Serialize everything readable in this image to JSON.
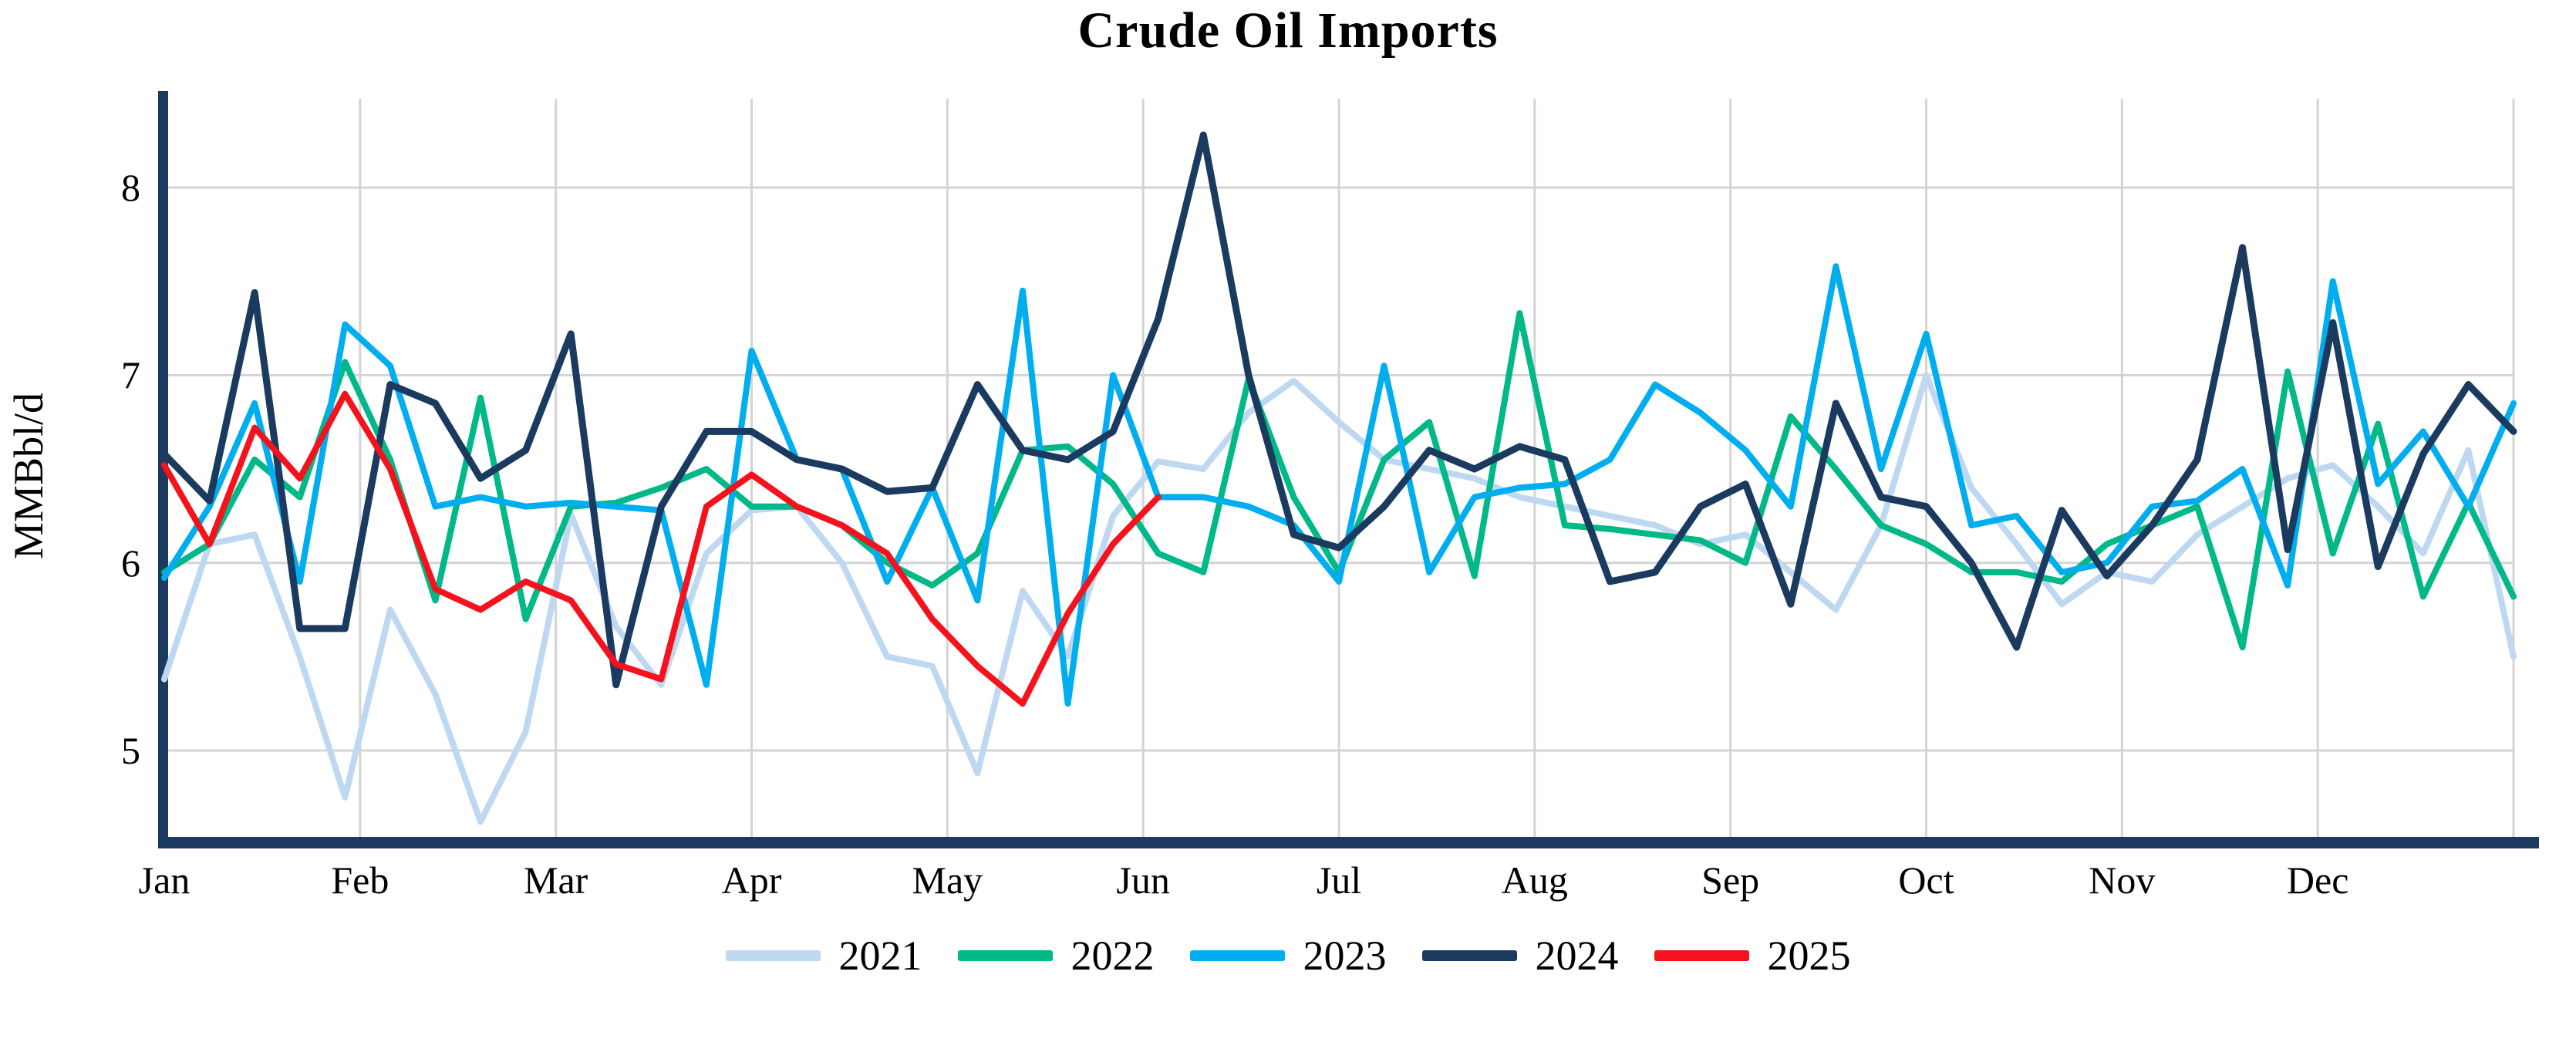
{
  "title": "Crude Oil Imports",
  "y_axis": {
    "label": "MMBbl/d",
    "ticks": [
      "8",
      "7",
      "6",
      "5"
    ],
    "tick_values": [
      8,
      7,
      6,
      5
    ]
  },
  "x_axis": {
    "months": [
      "Jan",
      "Feb",
      "Mar",
      "Apr",
      "May",
      "Jun",
      "Jul",
      "Aug",
      "Sep",
      "Oct",
      "Nov",
      "Dec"
    ]
  },
  "legend": [
    {
      "label": "2021",
      "color": "#BFD8F2"
    },
    {
      "label": "2022",
      "color": "#00B888"
    },
    {
      "label": "2023",
      "color": "#00AEF0"
    },
    {
      "label": "2024",
      "color": "#1B3A60"
    },
    {
      "label": "2025",
      "color": "#F5121D"
    }
  ],
  "colors": {
    "grid": "#D4D4D4",
    "axis": "#1B3A60",
    "text": "#000000"
  },
  "chart_data": {
    "type": "line",
    "title": "Crude Oil Imports",
    "xlabel": "",
    "ylabel": "MMBbl/d",
    "x_unit": "weekly observations, Jan through Dec",
    "ylim": [
      4.4,
      8.5
    ],
    "yticks": [
      5,
      6,
      7,
      8
    ],
    "grid": true,
    "legend_position": "bottom",
    "series": [
      {
        "name": "2021",
        "color": "#BFD8F2",
        "values": [
          5.38,
          6.1,
          6.15,
          5.5,
          4.75,
          5.75,
          5.3,
          4.62,
          5.1,
          6.26,
          5.66,
          5.35,
          6.05,
          6.28,
          6.3,
          6.0,
          5.5,
          5.45,
          4.88,
          5.85,
          5.5,
          6.25,
          6.54,
          6.5,
          6.8,
          6.97,
          6.75,
          6.55,
          6.5,
          6.45,
          6.35,
          6.3,
          6.25,
          6.2,
          6.1,
          6.15,
          5.95,
          5.75,
          6.2,
          7.0,
          6.4,
          6.1,
          5.78,
          5.95,
          5.9,
          6.15,
          6.3,
          6.45,
          6.52,
          6.3,
          6.05,
          6.6,
          5.5
        ]
      },
      {
        "name": "2022",
        "color": "#00B888",
        "values": [
          5.95,
          6.1,
          6.55,
          6.35,
          7.07,
          6.55,
          5.8,
          6.88,
          5.7,
          6.3,
          6.32,
          6.4,
          6.5,
          6.3,
          6.3,
          6.2,
          6.0,
          5.88,
          6.05,
          6.6,
          6.62,
          6.42,
          6.05,
          5.95,
          6.98,
          6.35,
          5.95,
          6.55,
          6.75,
          5.93,
          7.33,
          6.2,
          6.18,
          6.15,
          6.12,
          6.0,
          6.78,
          6.5,
          6.2,
          6.1,
          5.95,
          5.95,
          5.9,
          6.1,
          6.2,
          6.3,
          5.55,
          7.02,
          6.05,
          6.74,
          5.82,
          6.32,
          5.82
        ]
      },
      {
        "name": "2023",
        "color": "#00AEF0",
        "values": [
          5.92,
          6.3,
          6.85,
          5.9,
          7.27,
          7.05,
          6.3,
          6.35,
          6.3,
          6.32,
          6.3,
          6.28,
          5.35,
          7.13,
          6.55,
          6.5,
          5.9,
          6.4,
          5.8,
          7.45,
          5.25,
          7.0,
          6.35,
          6.35,
          6.3,
          6.2,
          5.9,
          7.05,
          5.95,
          6.35,
          6.4,
          6.42,
          6.55,
          6.95,
          6.8,
          6.6,
          6.3,
          7.58,
          6.5,
          7.22,
          6.2,
          6.25,
          5.95,
          6.0,
          6.3,
          6.33,
          6.5,
          5.88,
          7.5,
          6.42,
          6.7,
          6.3,
          6.85
        ]
      },
      {
        "name": "2024",
        "color": "#1B3A60",
        "values": [
          6.58,
          6.33,
          7.44,
          5.65,
          5.65,
          6.95,
          6.85,
          6.45,
          6.6,
          7.22,
          5.35,
          6.3,
          6.7,
          6.7,
          6.55,
          6.5,
          6.38,
          6.4,
          6.95,
          6.6,
          6.55,
          6.7,
          7.3,
          8.28,
          7.0,
          6.15,
          6.08,
          6.3,
          6.6,
          6.5,
          6.62,
          6.55,
          5.9,
          5.95,
          6.3,
          6.42,
          5.78,
          6.85,
          6.35,
          6.3,
          6.0,
          5.55,
          6.28,
          5.93,
          6.2,
          6.55,
          7.68,
          6.07,
          7.28,
          5.98,
          6.58,
          6.95,
          6.7
        ]
      },
      {
        "name": "2025",
        "color": "#F5121D",
        "values": [
          6.52,
          6.1,
          6.72,
          6.45,
          6.9,
          6.5,
          5.86,
          5.75,
          5.9,
          5.8,
          5.46,
          5.38,
          6.3,
          6.47,
          6.3,
          6.2,
          6.05,
          5.7,
          5.45,
          5.25,
          5.73,
          6.1,
          6.35
        ]
      }
    ]
  }
}
